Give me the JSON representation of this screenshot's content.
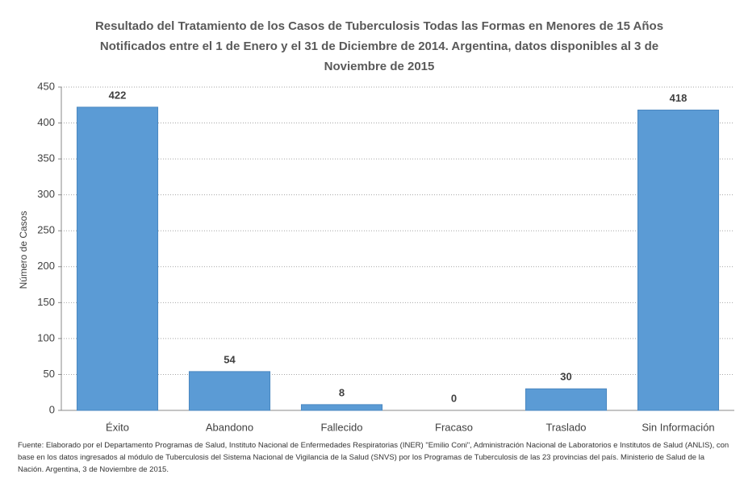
{
  "chart_data": {
    "type": "bar",
    "title": "Resultado del Tratamiento de los Casos de Tuberculosis Todas las Formas en Menores de 15 Años Notificados entre el 1 de Enero y el 31 de Diciembre de 2014. Argentina, datos disponibles al 3 de Noviembre de 2015",
    "y_label": "Número de Casos",
    "categories": [
      "Éxito",
      "Abandono",
      "Fallecido",
      "Fracaso",
      "Traslado",
      "Sin Información"
    ],
    "values": [
      422,
      54,
      8,
      0,
      30,
      418
    ],
    "color": "#5b9bd5",
    "ylim": [
      0,
      450
    ],
    "yticks": [
      0,
      50,
      100,
      150,
      200,
      250,
      300,
      350,
      400,
      450
    ],
    "grid": true,
    "source": "Fuente: Elaborado por el Departamento Programas de Salud, Instituto Nacional de Enfermedades Respiratorias (INER) \"Emilio Coni\", Administración Nacional de Laboratorios e Institutos de Salud (ANLIS), con base en los datos ingresados al módulo de Tuberculosis del Sistema Nacional de Vigilancia de la Salud (SNVS) por los Programas de Tuberculosis de las 23 provincias del país. Ministerio de Salud de la Nación. Argentina, 3 de Noviembre de 2015."
  }
}
